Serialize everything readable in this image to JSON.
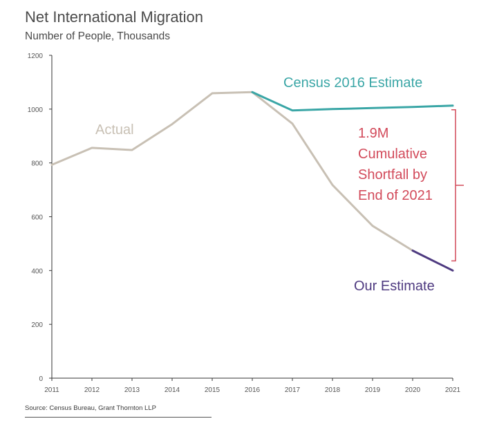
{
  "chart_data": {
    "type": "line",
    "title": "Net International Migration",
    "subtitle": "Number of People, Thousands",
    "source": "Source: Census Bureau, Grant Thornton LLP",
    "ylim": [
      0,
      1200
    ],
    "yticks": [
      0,
      200,
      400,
      600,
      800,
      1000,
      1200
    ],
    "x": [
      2011,
      2012,
      2013,
      2014,
      2015,
      2016,
      2017,
      2018,
      2019,
      2020,
      2021
    ],
    "grid": false,
    "series": [
      {
        "name": "Actual",
        "color": "#c8c0b4",
        "points": [
          [
            2011,
            793
          ],
          [
            2012,
            856
          ],
          [
            2013,
            848
          ],
          [
            2014,
            944
          ],
          [
            2015,
            1059
          ],
          [
            2016,
            1063
          ],
          [
            2017,
            946
          ],
          [
            2018,
            718
          ],
          [
            2019,
            566
          ],
          [
            2020,
            474
          ]
        ]
      },
      {
        "name": "Census 2016 Estimate",
        "color": "#3aa6a6",
        "points": [
          [
            2016,
            1063
          ],
          [
            2017,
            995
          ],
          [
            2018,
            1000
          ],
          [
            2019,
            1004
          ],
          [
            2020,
            1008
          ],
          [
            2021,
            1013
          ]
        ]
      },
      {
        "name": "Our Estimate",
        "color": "#4e3a80",
        "points": [
          [
            2020,
            474
          ],
          [
            2021,
            400
          ]
        ]
      }
    ],
    "shortfall": {
      "lines": [
        "1.9M",
        "Cumulative",
        "Shortfall by",
        "End of 2021"
      ],
      "color": "#d24a5a",
      "from": 1013,
      "to": 400
    }
  }
}
